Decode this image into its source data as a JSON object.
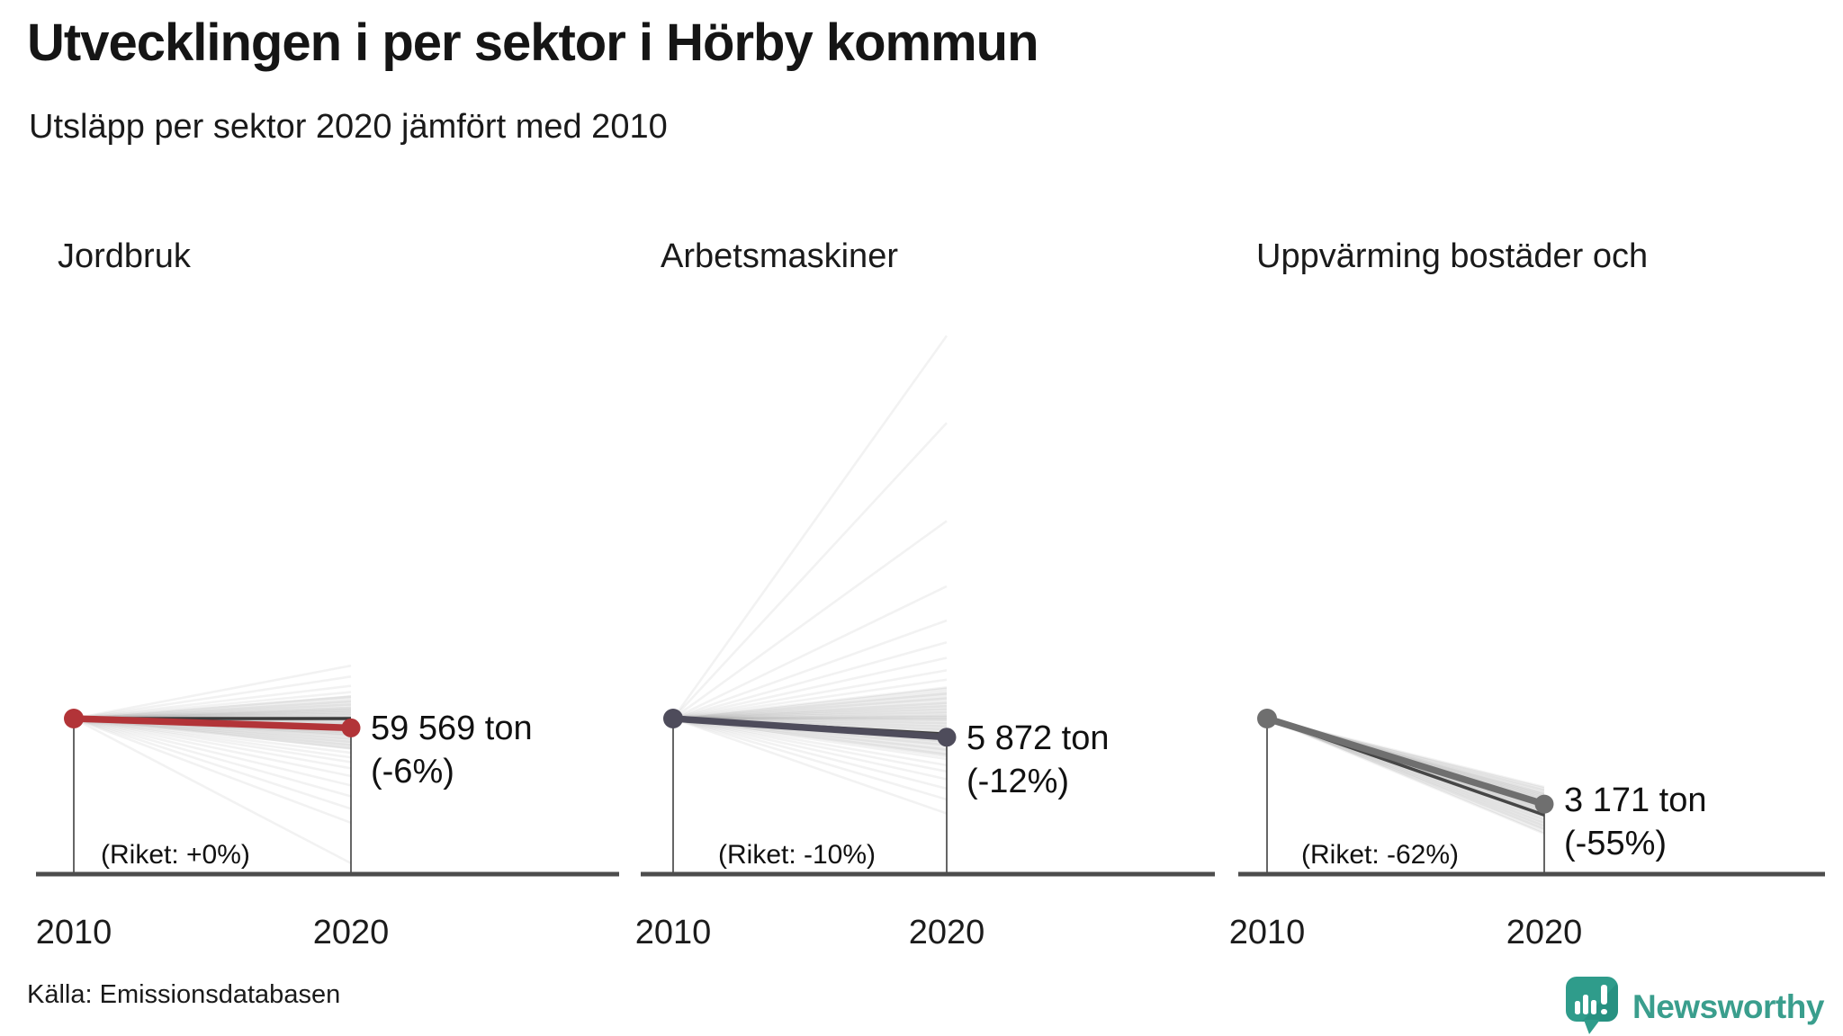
{
  "header": {
    "title": "Utvecklingen i per sektor i Hörby kommun",
    "subtitle": "Utsläpp per sektor 2020 jämfört med 2010"
  },
  "footer": {
    "source": "Källa: Emissionsdatabasen",
    "brand_name": "Newsworthy",
    "brand_color": "#2f9c8b"
  },
  "chart_data": [
    {
      "type": "line",
      "title": "Jordbruk",
      "x_labels": [
        "2010",
        "2020"
      ],
      "value_label": "59 569 ton",
      "pct_label": "(-6%)",
      "riket_label": "(Riket: +0%)",
      "series": [
        {
          "name": "Hörby kommun",
          "change_pct": -6,
          "end_value": "59 569 ton",
          "color": "#b23438"
        },
        {
          "name": "Riket",
          "change_pct": 0,
          "color": "#3b3b3b"
        }
      ],
      "background_changes_pct": [
        34,
        27,
        21,
        17,
        14,
        11,
        9,
        7,
        6,
        5,
        4,
        3,
        2,
        1,
        0,
        -1,
        -2,
        -3,
        -4,
        -5,
        -6,
        -7,
        -8,
        -9,
        -10,
        -11,
        -13,
        -15,
        -17,
        -19,
        -22,
        -25,
        -28,
        -32,
        -37,
        -43,
        -50,
        -58,
        -67,
        -93
      ],
      "background_dense_range_pct": [
        -20,
        15
      ]
    },
    {
      "type": "line",
      "title": "Arbetsmaskiner",
      "x_labels": [
        "2010",
        "2020"
      ],
      "value_label": "5 872 ton",
      "pct_label": "(-12%)",
      "riket_label": "(Riket: -10%)",
      "series": [
        {
          "name": "Hörby kommun",
          "change_pct": -12,
          "end_value": "5 872 ton",
          "color": "#4e4c5b"
        },
        {
          "name": "Riket",
          "change_pct": -10,
          "color": "#3b3b3b"
        }
      ],
      "background_changes_pct": [
        246,
        190,
        127,
        85,
        63,
        49,
        39,
        31,
        25,
        20,
        16,
        13,
        10,
        8,
        6,
        4,
        2,
        1,
        0,
        -1,
        -3,
        -5,
        -7,
        -9,
        -11,
        -13,
        -15,
        -17,
        -20,
        -23,
        -26,
        -30,
        -34,
        -39,
        -45,
        -52,
        -61
      ],
      "background_dense_range_pct": [
        -25,
        20
      ]
    },
    {
      "type": "line",
      "title": "Uppvärming bostäder och",
      "x_labels": [
        "2010",
        "2020"
      ],
      "value_label": "3 171 ton",
      "pct_label": "(-55%)",
      "riket_label": "(Riket: -62%)",
      "series": [
        {
          "name": "Hörby kommun",
          "change_pct": -55,
          "end_value": "3 171 ton",
          "color": "#6f6f6f"
        },
        {
          "name": "Riket",
          "change_pct": -62,
          "color": "#464646"
        }
      ],
      "background_changes_pct": [
        -44,
        -46,
        -48,
        -49,
        -50,
        -51,
        -52,
        -53,
        -54,
        -55,
        -56,
        -57,
        -58,
        -59,
        -60,
        -61,
        -62,
        -63,
        -65,
        -67,
        -69,
        -71,
        -74
      ],
      "background_dense_range_pct": [
        -74,
        -44
      ]
    }
  ]
}
